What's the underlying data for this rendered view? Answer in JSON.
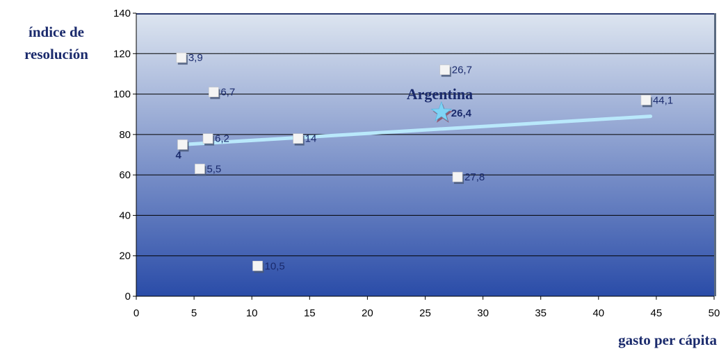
{
  "chart_data": {
    "type": "scatter",
    "ylabel_lines": [
      "índice de",
      "resolución"
    ],
    "xlabel": "gasto per cápita",
    "xlim": [
      0,
      50
    ],
    "ylim": [
      0,
      140
    ],
    "xticks": [
      0,
      5,
      10,
      15,
      20,
      25,
      30,
      35,
      40,
      45,
      50
    ],
    "yticks": [
      0,
      20,
      40,
      60,
      80,
      100,
      120,
      140
    ],
    "grid": "horizontal",
    "points": [
      {
        "x": 3.9,
        "y": 118,
        "label": "3,9"
      },
      {
        "x": 6.7,
        "y": 101,
        "label": "6,7"
      },
      {
        "x": 6.2,
        "y": 78,
        "label": "6,2"
      },
      {
        "x": 4.0,
        "y": 75,
        "label": "4"
      },
      {
        "x": 5.5,
        "y": 63,
        "label": "5,5"
      },
      {
        "x": 14.0,
        "y": 78,
        "label": "14"
      },
      {
        "x": 10.5,
        "y": 15,
        "label": "10,5"
      },
      {
        "x": 26.7,
        "y": 112,
        "label": "26,7"
      },
      {
        "x": 27.8,
        "y": 59,
        "label": "27,8"
      },
      {
        "x": 44.1,
        "y": 97,
        "label": "44,1"
      }
    ],
    "highlight": {
      "x": 26.4,
      "y": 91,
      "label": "26,4",
      "annotation": "Argentina",
      "marker": "star"
    },
    "trendline": {
      "x0": 4.0,
      "y0": 75,
      "x1": 44.5,
      "y1": 89
    }
  },
  "colors": {
    "plot_top": "#dde5f0",
    "plot_bottom": "#2a4ca8",
    "trendline": "#b9e8fb",
    "label": "#1a2a6c",
    "star": "#7fd3f5"
  }
}
